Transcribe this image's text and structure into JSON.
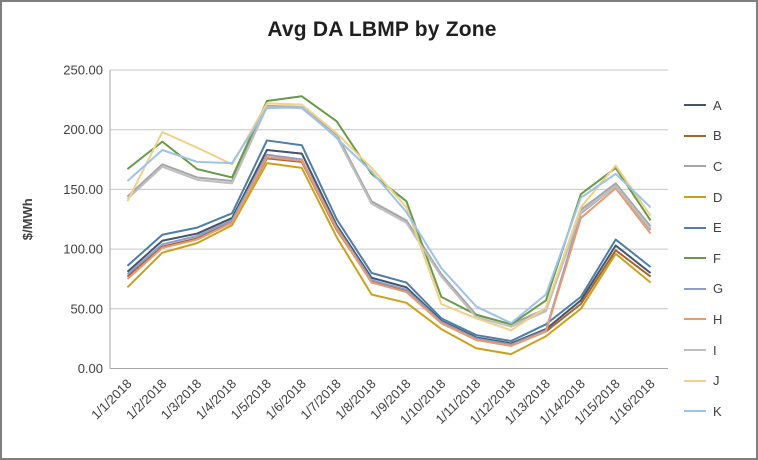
{
  "title": "Avg DA LBMP by Zone",
  "chart_data": {
    "type": "line",
    "title": "Avg DA LBMP by Zone",
    "xlabel": "",
    "ylabel": "$/MWh",
    "ylim": [
      0,
      250
    ],
    "yticks": [
      0,
      50,
      100,
      150,
      200,
      250
    ],
    "ytick_labels": [
      "0.00",
      "50.00",
      "100.00",
      "150.00",
      "200.00",
      "250.00"
    ],
    "grid": true,
    "legend_position": "right",
    "categories": [
      "1/1/2018",
      "1/2/2018",
      "1/3/2018",
      "1/4/2018",
      "1/5/2018",
      "1/6/2018",
      "1/7/2018",
      "1/8/2018",
      "1/9/2018",
      "1/10/2018",
      "1/11/2018",
      "1/12/2018",
      "1/13/2018",
      "1/14/2018",
      "1/15/2018",
      "1/16/2018"
    ],
    "series": [
      {
        "name": "A",
        "color": "#44546A",
        "values": [
          81,
          107,
          113,
          126,
          183,
          180,
          120,
          76,
          68,
          40,
          26,
          21,
          33,
          57,
          103,
          80
        ]
      },
      {
        "name": "B",
        "color": "#A8632F",
        "values": [
          77,
          102,
          109,
          123,
          176,
          173,
          116,
          73,
          65,
          38,
          24,
          19,
          31,
          54,
          99,
          77
        ]
      },
      {
        "name": "C",
        "color": "#A6A6A6",
        "values": [
          144,
          171,
          160,
          157,
          220,
          219,
          196,
          140,
          124,
          79,
          45,
          37,
          50,
          133,
          155,
          119
        ]
      },
      {
        "name": "D",
        "color": "#C9A21D",
        "values": [
          68,
          97,
          105,
          120,
          172,
          168,
          110,
          62,
          55,
          33,
          17,
          12,
          27,
          50,
          96,
          72
        ]
      },
      {
        "name": "E",
        "color": "#4E7EA6",
        "values": [
          86,
          112,
          118,
          130,
          191,
          187,
          125,
          80,
          72,
          42,
          28,
          23,
          37,
          60,
          108,
          85
        ]
      },
      {
        "name": "F",
        "color": "#6A9A48",
        "values": [
          167,
          190,
          167,
          160,
          224,
          228,
          207,
          163,
          140,
          60,
          45,
          37,
          57,
          146,
          168,
          124
        ]
      },
      {
        "name": "G",
        "color": "#8B9DC9",
        "values": [
          79,
          104,
          111,
          124,
          179,
          175,
          118,
          74,
          66,
          39,
          25,
          20,
          32,
          130,
          153,
          116
        ]
      },
      {
        "name": "H",
        "color": "#E89B70",
        "values": [
          75,
          101,
          108,
          122,
          177,
          174,
          117,
          72,
          64,
          38,
          24,
          19,
          31,
          126,
          151,
          113
        ]
      },
      {
        "name": "I",
        "color": "#BFBFBF",
        "values": [
          142,
          169,
          158,
          155,
          219,
          218,
          194,
          138,
          122,
          77,
          43,
          35,
          48,
          131,
          153,
          117
        ]
      },
      {
        "name": "J",
        "color": "#EFD189",
        "values": [
          140,
          198,
          185,
          171,
          222,
          221,
          197,
          168,
          135,
          54,
          42,
          32,
          51,
          135,
          170,
          128
        ]
      },
      {
        "name": "K",
        "color": "#9DC3E6",
        "values": [
          157,
          183,
          173,
          172,
          218,
          219,
          193,
          165,
          131,
          84,
          52,
          38,
          62,
          143,
          163,
          135
        ]
      }
    ]
  },
  "style": {
    "gridline_color": "#C6C6C6",
    "axis_color": "#A6A6A6",
    "tick_label_color": "#404040",
    "title_color": "#1f1f1f"
  }
}
